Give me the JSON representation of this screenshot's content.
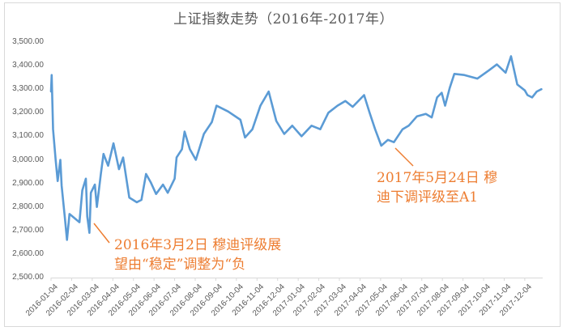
{
  "chart_data": {
    "type": "line",
    "title": "上证指数走势（2016年-2017年）",
    "xlabel": "",
    "ylabel": "",
    "ylim": [
      2500,
      3500
    ],
    "yticks": [
      "3,500.00",
      "3,400.00",
      "3,300.00",
      "3,200.00",
      "3,100.00",
      "3,000.00",
      "2,900.00",
      "2,800.00",
      "2,700.00",
      "2,600.00",
      "2,500.00"
    ],
    "xticks": [
      "2016-01-04",
      "2016-02-04",
      "2016-03-04",
      "2016-04-04",
      "2016-05-04",
      "2016-06-04",
      "2016-07-04",
      "2016-08-04",
      "2016-09-04",
      "2016-10-04",
      "2016-11-04",
      "2016-12-04",
      "2017-01-04",
      "2017-02-04",
      "2017-03-04",
      "2017-04-04",
      "2017-05-04",
      "2017-06-04",
      "2017-07-04",
      "2017-08-04",
      "2017-09-04",
      "2017-10-04",
      "2017-11-04",
      "2017-12-04"
    ],
    "grid": false,
    "legend": null,
    "series": [
      {
        "name": "上证指数",
        "color": "#5B9BD5",
        "points": [
          [
            "2016-01-04",
            3290
          ],
          [
            "2016-01-05",
            3360
          ],
          [
            "2016-01-07",
            3130
          ],
          [
            "2016-01-11",
            3000
          ],
          [
            "2016-01-14",
            2910
          ],
          [
            "2016-01-18",
            3000
          ],
          [
            "2016-01-20",
            2890
          ],
          [
            "2016-01-25",
            2750
          ],
          [
            "2016-01-28",
            2660
          ],
          [
            "2016-02-01",
            2770
          ],
          [
            "2016-02-15",
            2735
          ],
          [
            "2016-02-19",
            2870
          ],
          [
            "2016-02-24",
            2920
          ],
          [
            "2016-02-26",
            2760
          ],
          [
            "2016-02-29",
            2690
          ],
          [
            "2016-03-02",
            2860
          ],
          [
            "2016-03-08",
            2895
          ],
          [
            "2016-03-11",
            2800
          ],
          [
            "2016-03-17",
            2940
          ],
          [
            "2016-03-21",
            3025
          ],
          [
            "2016-03-28",
            2975
          ],
          [
            "2016-04-05",
            3070
          ],
          [
            "2016-04-13",
            2960
          ],
          [
            "2016-04-19",
            3010
          ],
          [
            "2016-04-28",
            2840
          ],
          [
            "2016-05-09",
            2820
          ],
          [
            "2016-05-16",
            2830
          ],
          [
            "2016-05-23",
            2940
          ],
          [
            "2016-05-30",
            2905
          ],
          [
            "2016-06-07",
            2855
          ],
          [
            "2016-06-17",
            2895
          ],
          [
            "2016-06-24",
            2860
          ],
          [
            "2016-07-04",
            2920
          ],
          [
            "2016-07-07",
            3010
          ],
          [
            "2016-07-15",
            3045
          ],
          [
            "2016-07-19",
            3120
          ],
          [
            "2016-07-27",
            3045
          ],
          [
            "2016-08-05",
            3000
          ],
          [
            "2016-08-17",
            3110
          ],
          [
            "2016-08-29",
            3160
          ],
          [
            "2016-09-05",
            3230
          ],
          [
            "2016-09-22",
            3205
          ],
          [
            "2016-10-10",
            3170
          ],
          [
            "2016-10-17",
            3095
          ],
          [
            "2016-10-28",
            3130
          ],
          [
            "2016-11-09",
            3230
          ],
          [
            "2016-11-21",
            3290
          ],
          [
            "2016-12-02",
            3165
          ],
          [
            "2016-12-14",
            3110
          ],
          [
            "2016-12-26",
            3145
          ],
          [
            "2017-01-09",
            3100
          ],
          [
            "2017-01-24",
            3145
          ],
          [
            "2017-02-06",
            3130
          ],
          [
            "2017-02-17",
            3200
          ],
          [
            "2017-03-01",
            3230
          ],
          [
            "2017-03-13",
            3250
          ],
          [
            "2017-03-24",
            3225
          ],
          [
            "2017-04-10",
            3275
          ],
          [
            "2017-04-18",
            3200
          ],
          [
            "2017-04-26",
            3130
          ],
          [
            "2017-05-05",
            3060
          ],
          [
            "2017-05-15",
            3085
          ],
          [
            "2017-05-24",
            3075
          ],
          [
            "2017-06-06",
            3130
          ],
          [
            "2017-06-15",
            3145
          ],
          [
            "2017-06-27",
            3185
          ],
          [
            "2017-07-10",
            3195
          ],
          [
            "2017-07-19",
            3180
          ],
          [
            "2017-07-27",
            3265
          ],
          [
            "2017-08-03",
            3285
          ],
          [
            "2017-08-08",
            3230
          ],
          [
            "2017-08-15",
            3305
          ],
          [
            "2017-08-22",
            3365
          ],
          [
            "2017-09-06",
            3360
          ],
          [
            "2017-09-25",
            3345
          ],
          [
            "2017-10-12",
            3380
          ],
          [
            "2017-10-24",
            3405
          ],
          [
            "2017-11-06",
            3370
          ],
          [
            "2017-11-14",
            3440
          ],
          [
            "2017-11-23",
            3320
          ],
          [
            "2017-12-04",
            3295
          ],
          [
            "2017-12-08",
            3275
          ],
          [
            "2017-12-15",
            3265
          ],
          [
            "2017-12-22",
            3290
          ],
          [
            "2017-12-29",
            3300
          ]
        ]
      }
    ],
    "annotations": [
      {
        "text_lines": [
          "2016年3月2日  穆迪评级展",
          "望由“稳定”调整为“负"
        ],
        "point": "2016-03-02",
        "color": "#ED7D31"
      },
      {
        "text_lines": [
          "2017年5月24日  穆",
          "迪下调评级至A1"
        ],
        "point": "2017-05-24",
        "color": "#ED7D31"
      }
    ]
  },
  "colors": {
    "line": "#5B9BD5",
    "annotation": "#ED7D31",
    "axis": "#d9d9d9",
    "text": "#595959"
  }
}
